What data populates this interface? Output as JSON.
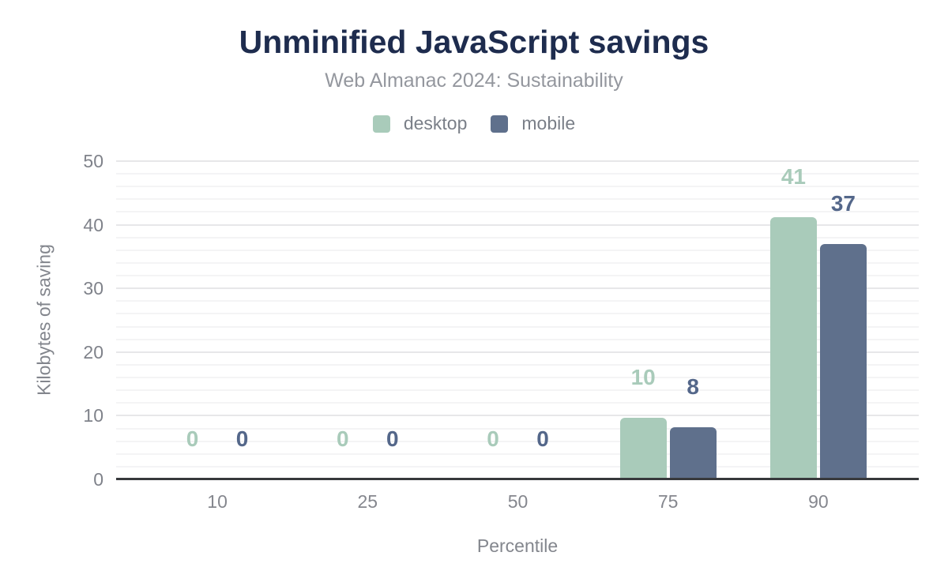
{
  "chart_data": {
    "type": "bar",
    "title": "Unminified JavaScript savings",
    "subtitle": "Web Almanac 2024: Sustainability",
    "xlabel": "Percentile",
    "ylabel": "Kilobytes of saving",
    "categories": [
      "10",
      "25",
      "50",
      "75",
      "90"
    ],
    "series": [
      {
        "name": "desktop",
        "color": "#a9cbba",
        "label_color": "#a9cbba",
        "values": [
          0,
          0,
          0,
          9.7,
          41.2
        ],
        "labels": [
          "0",
          "0",
          "0",
          "10",
          "41"
        ]
      },
      {
        "name": "mobile",
        "color": "#5f708c",
        "label_color": "#54678a",
        "values": [
          0,
          0,
          0,
          8.2,
          37
        ],
        "labels": [
          "0",
          "0",
          "0",
          "8",
          "37"
        ]
      }
    ],
    "ylim": [
      0,
      50
    ],
    "y_ticks": [
      0,
      10,
      20,
      30,
      40,
      50
    ],
    "minor_grid_step": 2,
    "grid": true,
    "legend_position": "top"
  },
  "colors": {
    "background": "#ffffff",
    "title": "#1e2c4e",
    "subtitle": "#94979e",
    "axis_text": "#7f828a",
    "legend_text": "#7a7f88",
    "grid_major": "#e7e7e9",
    "grid_minor": "#f4f4f5",
    "baseline": "#37393c"
  }
}
